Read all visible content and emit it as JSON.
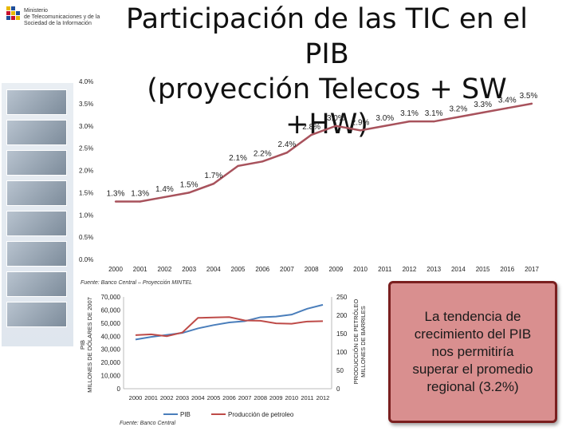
{
  "header": {
    "logo_text": "Ministerio\nde Telecomunicaciones y de la\nSociedad de la Información",
    "title": "Participación de las TIC en el PIB\n(proyección Telecos + SW +HW)"
  },
  "callout": {
    "text": "La tendencia de\ncrecimiento del PIB\nnos permitiría\nsuperar el promedio\nregional (3.2%)",
    "fill_color": "#d98f8f",
    "border_color": "#7a1f1f"
  },
  "chart_data": [
    {
      "type": "line",
      "x": [
        "2000",
        "2001",
        "2002",
        "2003",
        "2004",
        "2005",
        "2006",
        "2007",
        "2008",
        "2009",
        "2010",
        "2011",
        "2012",
        "2013",
        "2014",
        "2015",
        "2016",
        "2017"
      ],
      "series": [
        {
          "values": [
            1.3,
            1.3,
            1.4,
            1.5,
            1.7,
            2.1,
            2.2,
            2.4,
            2.8,
            3.0,
            2.9,
            3.0,
            3.1,
            3.1,
            3.2,
            3.3,
            3.4,
            3.5
          ],
          "labels": [
            "1.3%",
            "1.3%",
            "1.4%",
            "1.5%",
            "1.7%",
            "2.1%",
            "2.2%",
            "2.4%",
            "2.8%",
            "3.0%",
            "2.9%",
            "3.0%",
            "3.1%",
            "3.1%",
            "3.2%",
            "3.3%",
            "3.4%",
            "3.5%"
          ],
          "color": "#a8525c"
        }
      ],
      "yticks": [
        "0.0%",
        "0.5%",
        "1.0%",
        "1.5%",
        "2.0%",
        "2.5%",
        "3.0%",
        "3.5%",
        "4.0%"
      ],
      "ylim": [
        0,
        4
      ],
      "source": "Fuente: Banco Central – Proyección MINTEL"
    },
    {
      "type": "line",
      "x": [
        "2000",
        "2001",
        "2002",
        "2003",
        "2004",
        "2005",
        "2006",
        "2007",
        "2008",
        "2009",
        "2010",
        "2011",
        "2012"
      ],
      "ylabel": "PIB\nMILLONES DE DÓLARES DE 2007",
      "y2label": "PRODUCCIÓN DE PETRÓLEO\nMILLONES DE BARRILES",
      "ylim": [
        0,
        70000
      ],
      "y2lim": [
        0,
        250
      ],
      "yticks": [
        "0",
        "10,000",
        "20,000",
        "30,000",
        "40,000",
        "50,000",
        "60,000",
        "70,000"
      ],
      "y2ticks": [
        "0",
        "50",
        "100",
        "150",
        "200",
        "250"
      ],
      "series": [
        {
          "name": "PIB",
          "axis": "left",
          "color": "#4a7ebb",
          "values": [
            37500,
            39500,
            41000,
            42500,
            46000,
            48500,
            50500,
            51500,
            54500,
            55000,
            56500,
            61000,
            64000
          ]
        },
        {
          "name": "Producción de petroleo",
          "axis": "right",
          "color": "#be4b48",
          "values": [
            146,
            148,
            143,
            153,
            193,
            194,
            195,
            186,
            185,
            178,
            177,
            183,
            184
          ]
        }
      ],
      "legend_position": "bottom",
      "source": "Fuente: Banco Central"
    }
  ]
}
